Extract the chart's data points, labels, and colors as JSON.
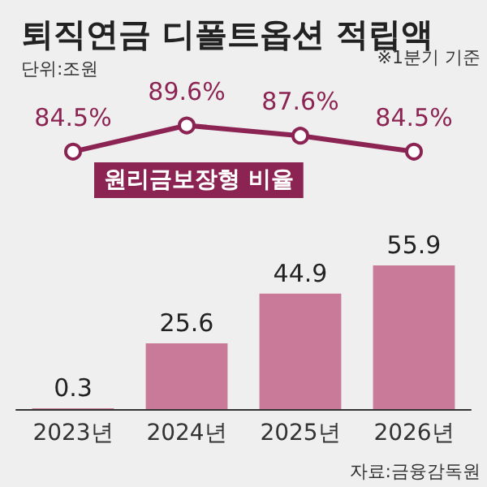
{
  "chart_data": [
    {
      "type": "line",
      "title": "퇴직연금 디폴트옵션 적립액",
      "subtitle": "단위:조원",
      "annotations": [
        "※1분기 기준"
      ],
      "categories": [
        null,
        null,
        null,
        null
      ],
      "series": [
        {
          "name": "원리금보장형 비율",
          "color": "#8c2453",
          "values": [
            84.5,
            89.6,
            87.6,
            84.5
          ],
          "value_labels": [
            "84.5%",
            "89.6%",
            "87.6%",
            "84.5%"
          ]
        }
      ],
      "marker": "circle"
    },
    {
      "type": "bar",
      "annotations": [
        "자료:금융감독원"
      ],
      "categories": [
        "2023년",
        "2024년",
        "2025년",
        "2026년"
      ],
      "series": [
        {
          "color": "#c97a98",
          "values": [
            0.3,
            25.6,
            44.9,
            55.9
          ]
        }
      ],
      "data_labels": true
    }
  ]
}
